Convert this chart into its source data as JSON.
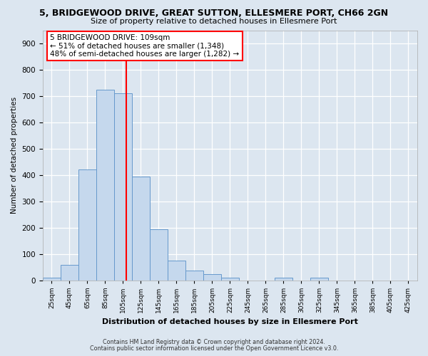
{
  "title": "5, BRIDGEWOOD DRIVE, GREAT SUTTON, ELLESMERE PORT, CH66 2GN",
  "subtitle": "Size of property relative to detached houses in Ellesmere Port",
  "xlabel": "Distribution of detached houses by size in Ellesmere Port",
  "ylabel": "Number of detached properties",
  "bar_values": [
    10,
    60,
    420,
    725,
    710,
    395,
    195,
    75,
    38,
    25,
    10,
    0,
    0,
    10,
    0,
    10
  ],
  "bin_left_edges": [
    15,
    35,
    55,
    75,
    95,
    115,
    135,
    155,
    175,
    195,
    215,
    235,
    255,
    275,
    295,
    315
  ],
  "bin_width": 20,
  "tick_positions": [
    25,
    45,
    65,
    85,
    105,
    125,
    145,
    165,
    185,
    205,
    225,
    245,
    265,
    285,
    305,
    325,
    345,
    365,
    385,
    405,
    425
  ],
  "tick_labels": [
    "25sqm",
    "45sqm",
    "65sqm",
    "85sqm",
    "105sqm",
    "125sqm",
    "145sqm",
    "165sqm",
    "185sqm",
    "205sqm",
    "225sqm",
    "245sqm",
    "265sqm",
    "285sqm",
    "305sqm",
    "325sqm",
    "345sqm",
    "365sqm",
    "385sqm",
    "405sqm",
    "425sqm"
  ],
  "vline_x": 109,
  "bar_color": "#c5d8ed",
  "bar_edge_color": "#6699cc",
  "vline_color": "red",
  "annotation_title": "5 BRIDGEWOOD DRIVE: 109sqm",
  "annotation_line1": "← 51% of detached houses are smaller (1,348)",
  "annotation_line2": "48% of semi-detached houses are larger (1,282) →",
  "annotation_box_color": "white",
  "annotation_box_edge": "red",
  "ylim": [
    0,
    950
  ],
  "yticks": [
    0,
    100,
    200,
    300,
    400,
    500,
    600,
    700,
    800,
    900
  ],
  "xlim": [
    15,
    435
  ],
  "footer1": "Contains HM Land Registry data © Crown copyright and database right 2024.",
  "footer2": "Contains public sector information licensed under the Open Government Licence v3.0.",
  "bg_color": "#dce6f0",
  "plot_bg_color": "#dce6f0"
}
